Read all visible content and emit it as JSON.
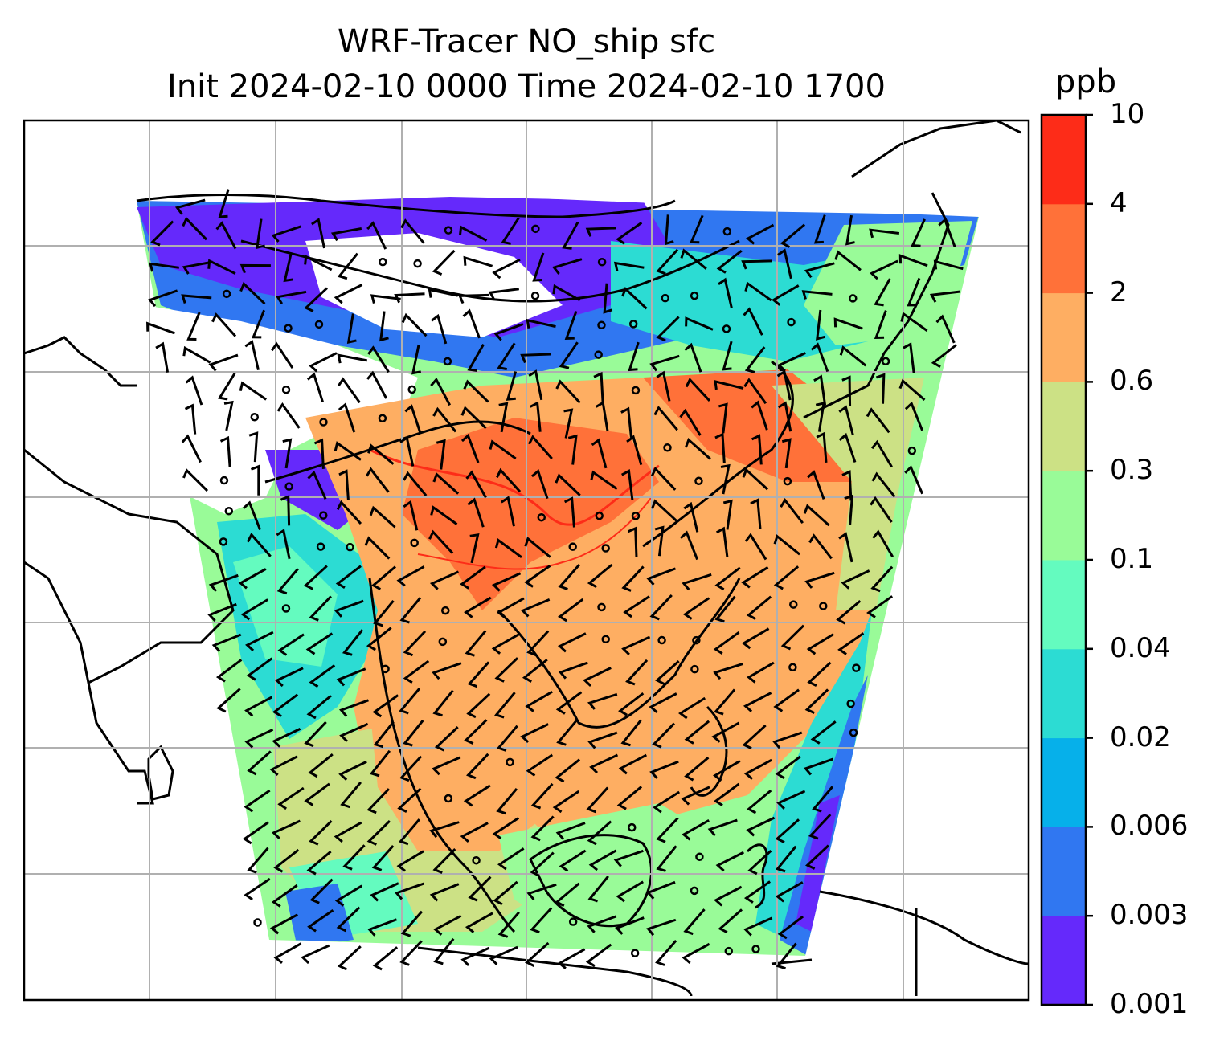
{
  "title": {
    "line1": "WRF-Tracer NO_ship sfc",
    "line2": "Init 2024-02-10 0000 Time 2024-02-10 1700"
  },
  "colorbar": {
    "unit": "ppb",
    "ticks": [
      "0.001",
      "0.003",
      "0.006",
      "0.02",
      "0.04",
      "0.1",
      "0.3",
      "0.6",
      "2",
      "4",
      "10"
    ],
    "colors": [
      "#6529fb",
      "#3077f1",
      "#06b0ea",
      "#2cdcd3",
      "#64fbbf",
      "#99fb98",
      "#cce185",
      "#feae62",
      "#ff7139",
      "#fd2c18"
    ]
  },
  "map": {
    "variable": "NO_ship",
    "level": "sfc",
    "gridlines": true,
    "wind_barbs": true,
    "coastlines": true
  }
}
